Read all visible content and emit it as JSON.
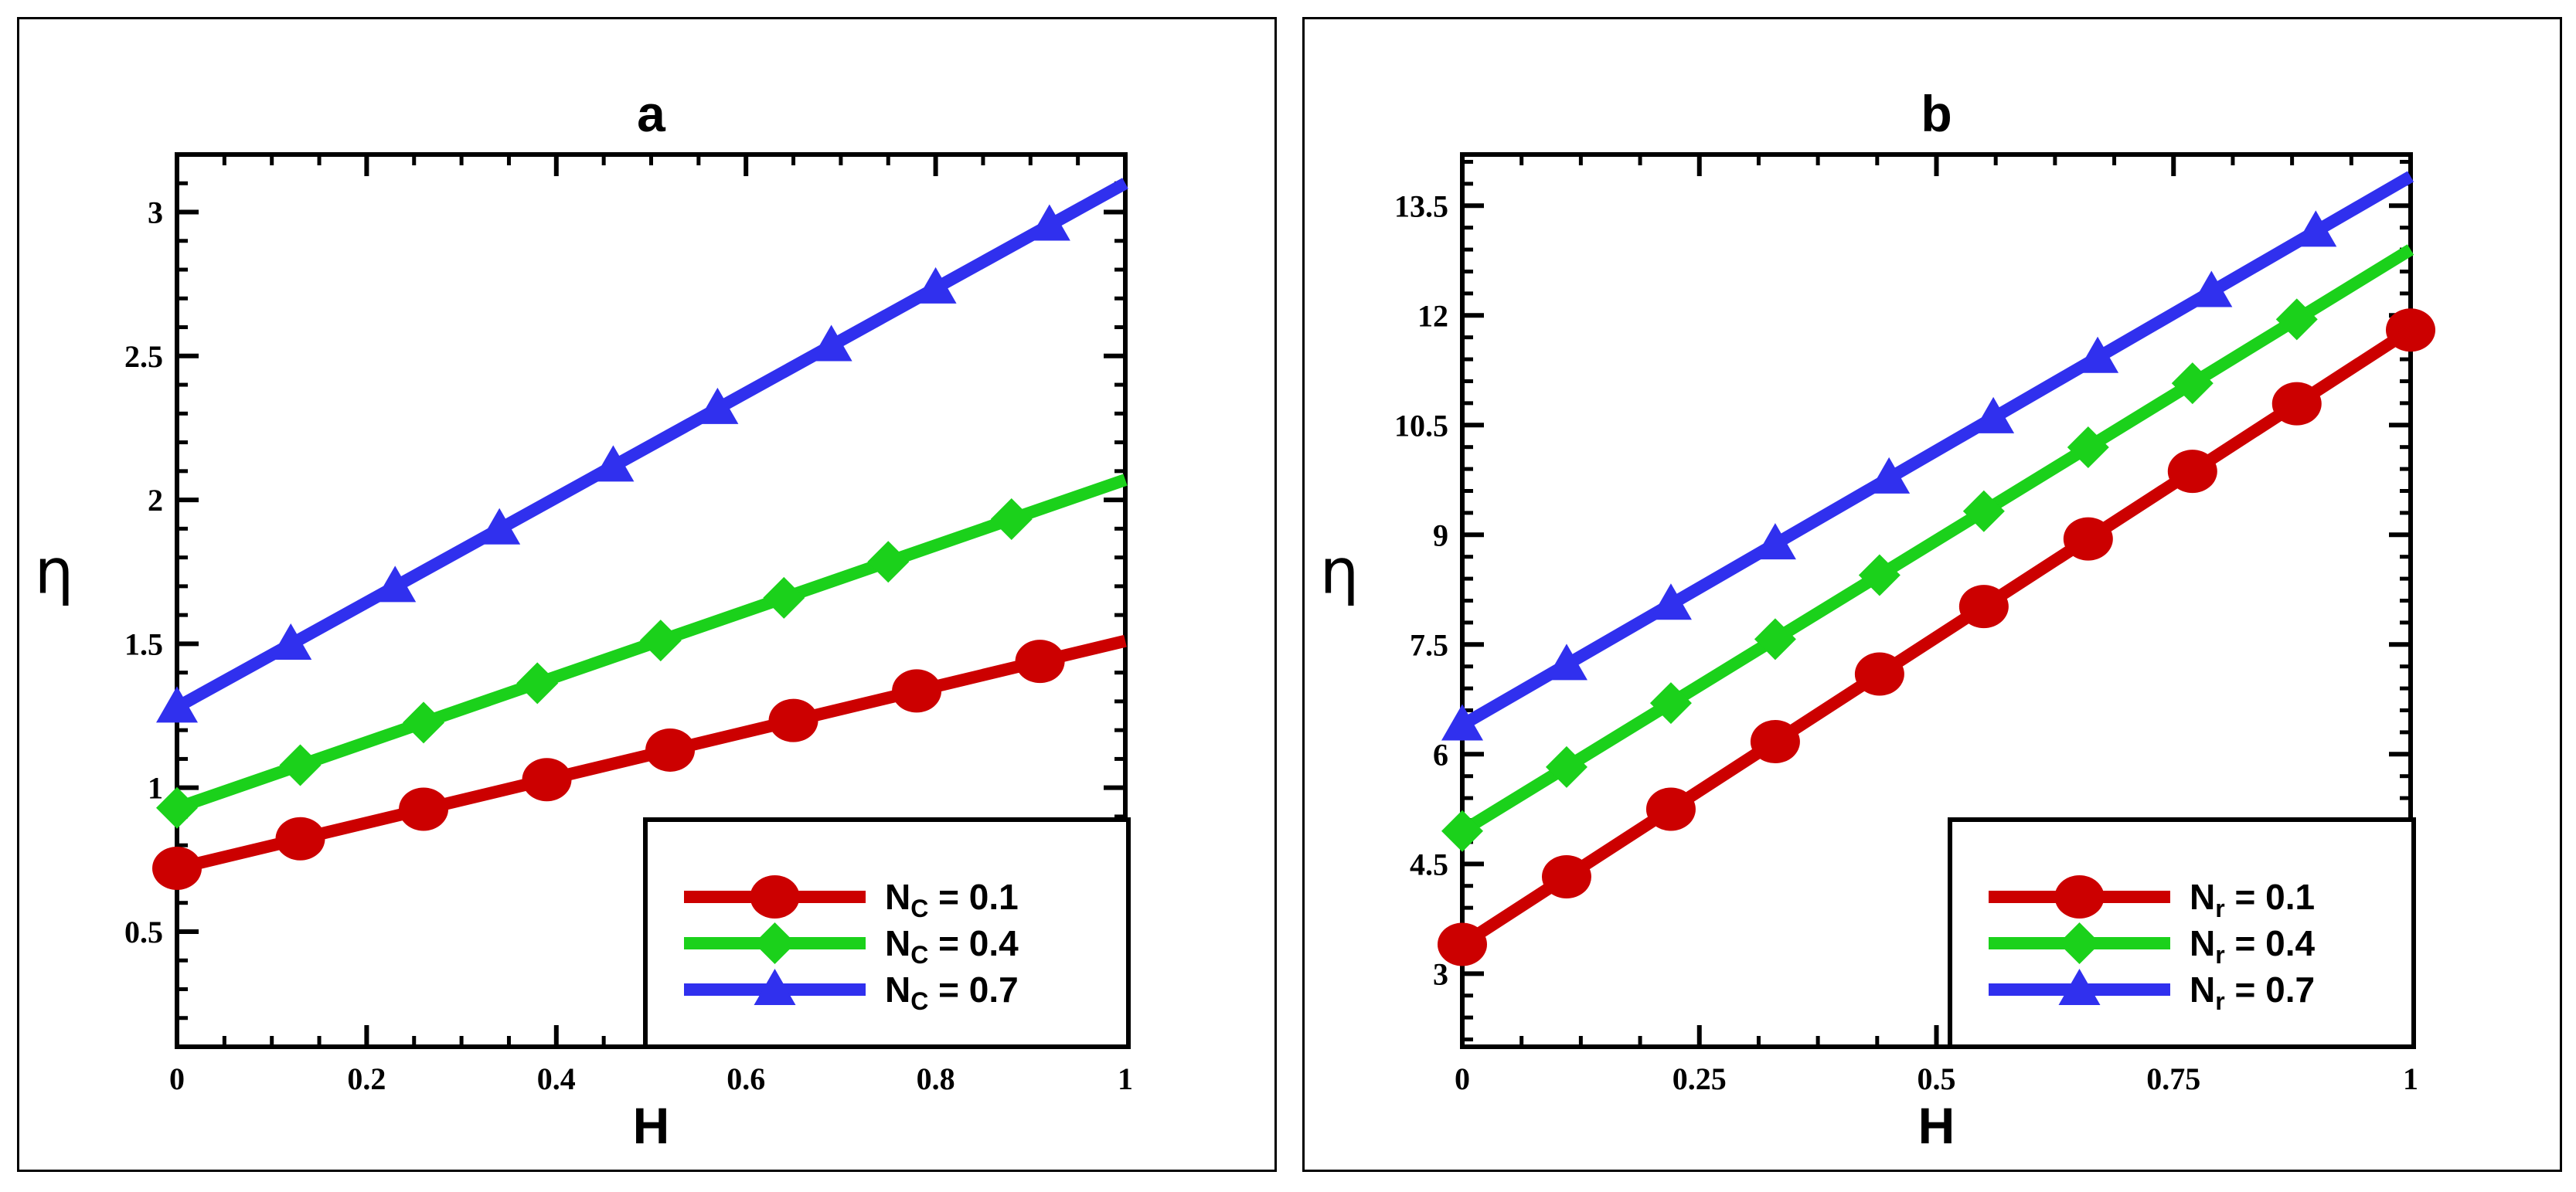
{
  "chart_data": [
    {
      "id": "a",
      "type": "line",
      "title": "a",
      "xlabel": "H",
      "ylabel": "η",
      "xlim": [
        0,
        1
      ],
      "ylim": [
        0.1,
        3.2
      ],
      "xticks": [
        0,
        0.2,
        0.4,
        0.6,
        0.8,
        1
      ],
      "xtick_labels": [
        "0",
        "0.2",
        "0.4",
        "0.6",
        "0.8",
        "1"
      ],
      "yticks": [
        0.5,
        1,
        1.5,
        2,
        2.5,
        3
      ],
      "ytick_labels": [
        "0.5",
        "1",
        "1.5",
        "2",
        "2.5",
        "3"
      ],
      "legend_position": "bottom-right",
      "series": [
        {
          "name": "N_C = 0.1",
          "legend_main": "N",
          "legend_sub": "C",
          "legend_value": " = 0.1",
          "color": "#cc0000",
          "marker": "circle",
          "x": [
            0,
            1
          ],
          "y": [
            0.72,
            1.51
          ],
          "marker_x": [
            0,
            0.13,
            0.26,
            0.39,
            0.52,
            0.65,
            0.78,
            0.91
          ]
        },
        {
          "name": "N_C = 0.4",
          "legend_main": "N",
          "legend_sub": "C",
          "legend_value": " = 0.4",
          "color": "#1bd11b",
          "marker": "diamond",
          "x": [
            0,
            1
          ],
          "y": [
            0.93,
            2.07
          ],
          "marker_x": [
            0,
            0.13,
            0.26,
            0.38,
            0.51,
            0.64,
            0.75,
            0.88
          ]
        },
        {
          "name": "N_C = 0.7",
          "legend_main": "N",
          "legend_sub": "C",
          "legend_value": " = 0.7",
          "color": "#3030ee",
          "marker": "triangle",
          "x": [
            0,
            1
          ],
          "y": [
            1.28,
            3.1
          ],
          "marker_x": [
            0,
            0.12,
            0.23,
            0.34,
            0.46,
            0.57,
            0.69,
            0.8,
            0.92
          ]
        }
      ]
    },
    {
      "id": "b",
      "type": "line",
      "title": "b",
      "xlabel": "H",
      "ylabel": "η",
      "xlim": [
        0,
        1
      ],
      "ylim": [
        2,
        14.2
      ],
      "xticks": [
        0,
        0.25,
        0.5,
        0.75,
        1
      ],
      "xtick_labels": [
        "0",
        "0.25",
        "0.5",
        "0.75",
        "1"
      ],
      "yticks": [
        3,
        4.5,
        6,
        7.5,
        9,
        10.5,
        12,
        13.5
      ],
      "ytick_labels": [
        "3",
        "4.5",
        "6",
        "7.5",
        "9",
        "10.5",
        "12",
        "13.5"
      ],
      "legend_position": "bottom-right",
      "series": [
        {
          "name": "N_r = 0.1",
          "legend_main": "N",
          "legend_sub": "r",
          "legend_value": " = 0.1",
          "color": "#cc0000",
          "marker": "circle",
          "x": [
            0,
            1
          ],
          "y": [
            3.4,
            11.8
          ],
          "marker_x": [
            0,
            0.11,
            0.22,
            0.33,
            0.44,
            0.55,
            0.66,
            0.77,
            0.88,
            1
          ]
        },
        {
          "name": "N_r = 0.4",
          "legend_main": "N",
          "legend_sub": "r",
          "legend_value": " = 0.4",
          "color": "#1bd11b",
          "marker": "diamond",
          "x": [
            0,
            1
          ],
          "y": [
            4.95,
            12.9
          ],
          "marker_x": [
            0,
            0.11,
            0.22,
            0.33,
            0.44,
            0.55,
            0.66,
            0.77,
            0.88
          ]
        },
        {
          "name": "N_r = 0.7",
          "legend_main": "N",
          "legend_sub": "r",
          "legend_value": " = 0.7",
          "color": "#3030ee",
          "marker": "triangle",
          "x": [
            0,
            1
          ],
          "y": [
            6.4,
            13.9
          ],
          "marker_x": [
            0,
            0.11,
            0.22,
            0.33,
            0.45,
            0.56,
            0.67,
            0.79,
            0.9
          ]
        }
      ]
    }
  ]
}
